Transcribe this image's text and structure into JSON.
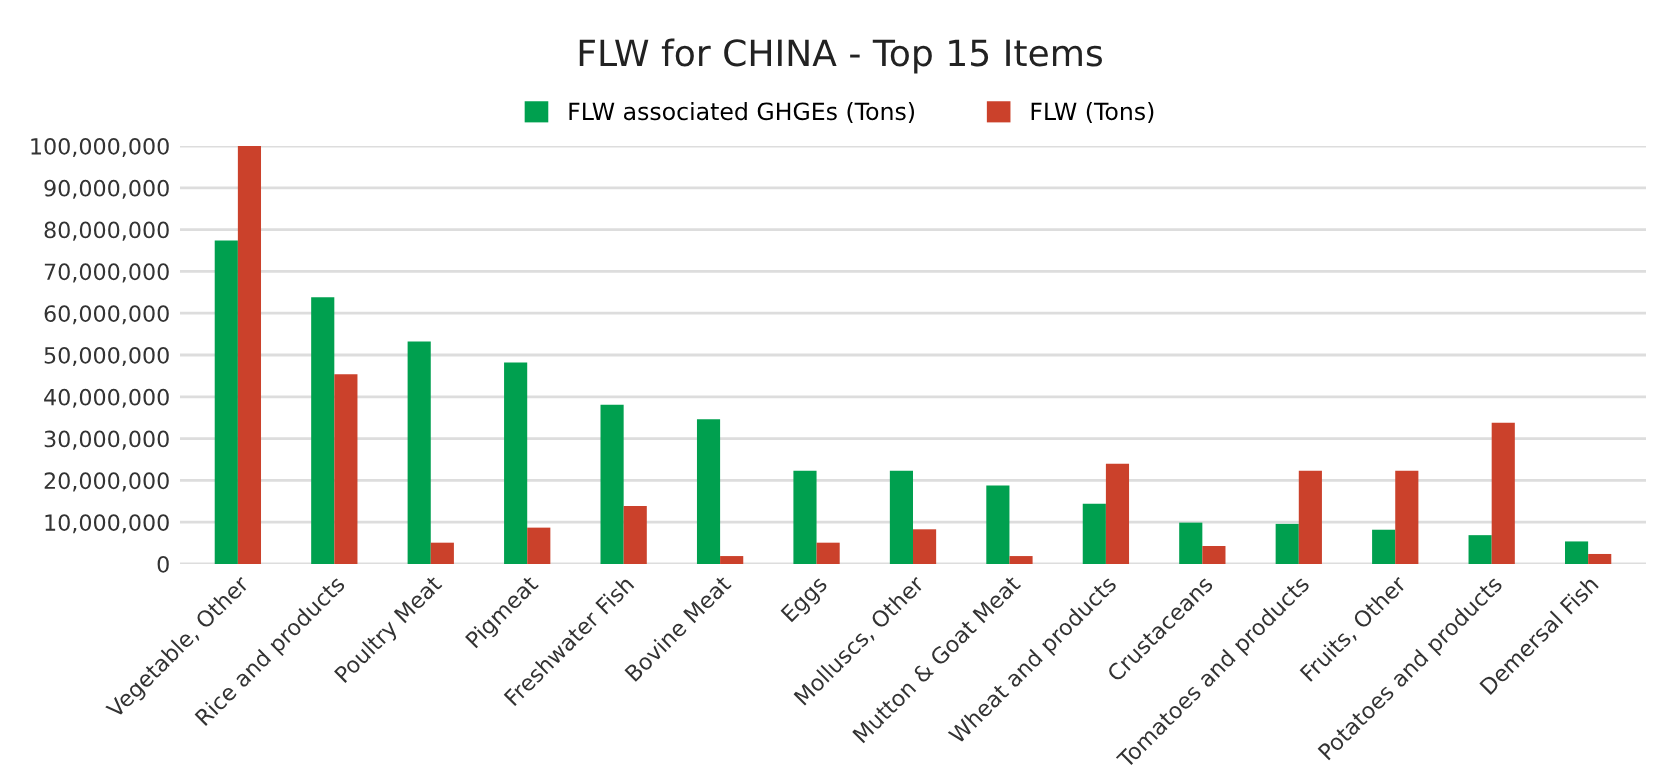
{
  "chart_data": {
    "type": "bar",
    "title": "FLW for CHINA - Top 15 Items",
    "categories": [
      "Vegetable, Other",
      "Rice and products",
      "Poultry Meat",
      "Pigmeat",
      "Freshwater Fish",
      "Bovine Meat",
      "Eggs",
      "Molluscs, Other",
      "Mutton & Goat Meat",
      "Wheat and products",
      "Crustaceans",
      "Tomatoes and products",
      "Fruits, Other",
      "Potatoes and products",
      "Demersal Fish"
    ],
    "series": [
      {
        "name": "FLW associated GHGEs (Tons)",
        "color": "#00a04f",
        "values": [
          77400000,
          63800000,
          53200000,
          48200000,
          38100000,
          34600000,
          22300000,
          22300000,
          18800000,
          14400000,
          9900000,
          9600000,
          8200000,
          6900000,
          5400000
        ]
      },
      {
        "name": "FLW (Tons)",
        "color": "#cb412b",
        "values": [
          100000000,
          45400000,
          5100000,
          8700000,
          13900000,
          1900000,
          5100000,
          8300000,
          1900000,
          24000000,
          4300000,
          22300000,
          22300000,
          33800000,
          2400000
        ]
      }
    ],
    "ylim": [
      0,
      100000000
    ],
    "yticks": [
      {
        "value": 0,
        "label": "0"
      },
      {
        "value": 10000000,
        "label": "10,000,000"
      },
      {
        "value": 20000000,
        "label": "20,000,000"
      },
      {
        "value": 30000000,
        "label": "30,000,000"
      },
      {
        "value": 40000000,
        "label": "40,000,000"
      },
      {
        "value": 50000000,
        "label": "50,000,000"
      },
      {
        "value": 60000000,
        "label": "60,000,000"
      },
      {
        "value": 70000000,
        "label": "70,000,000"
      },
      {
        "value": 80000000,
        "label": "80,000,000"
      },
      {
        "value": 90000000,
        "label": "90,000,000"
      },
      {
        "value": 100000000,
        "label": "100,000,000"
      }
    ],
    "grid": "y",
    "legend": "top"
  }
}
